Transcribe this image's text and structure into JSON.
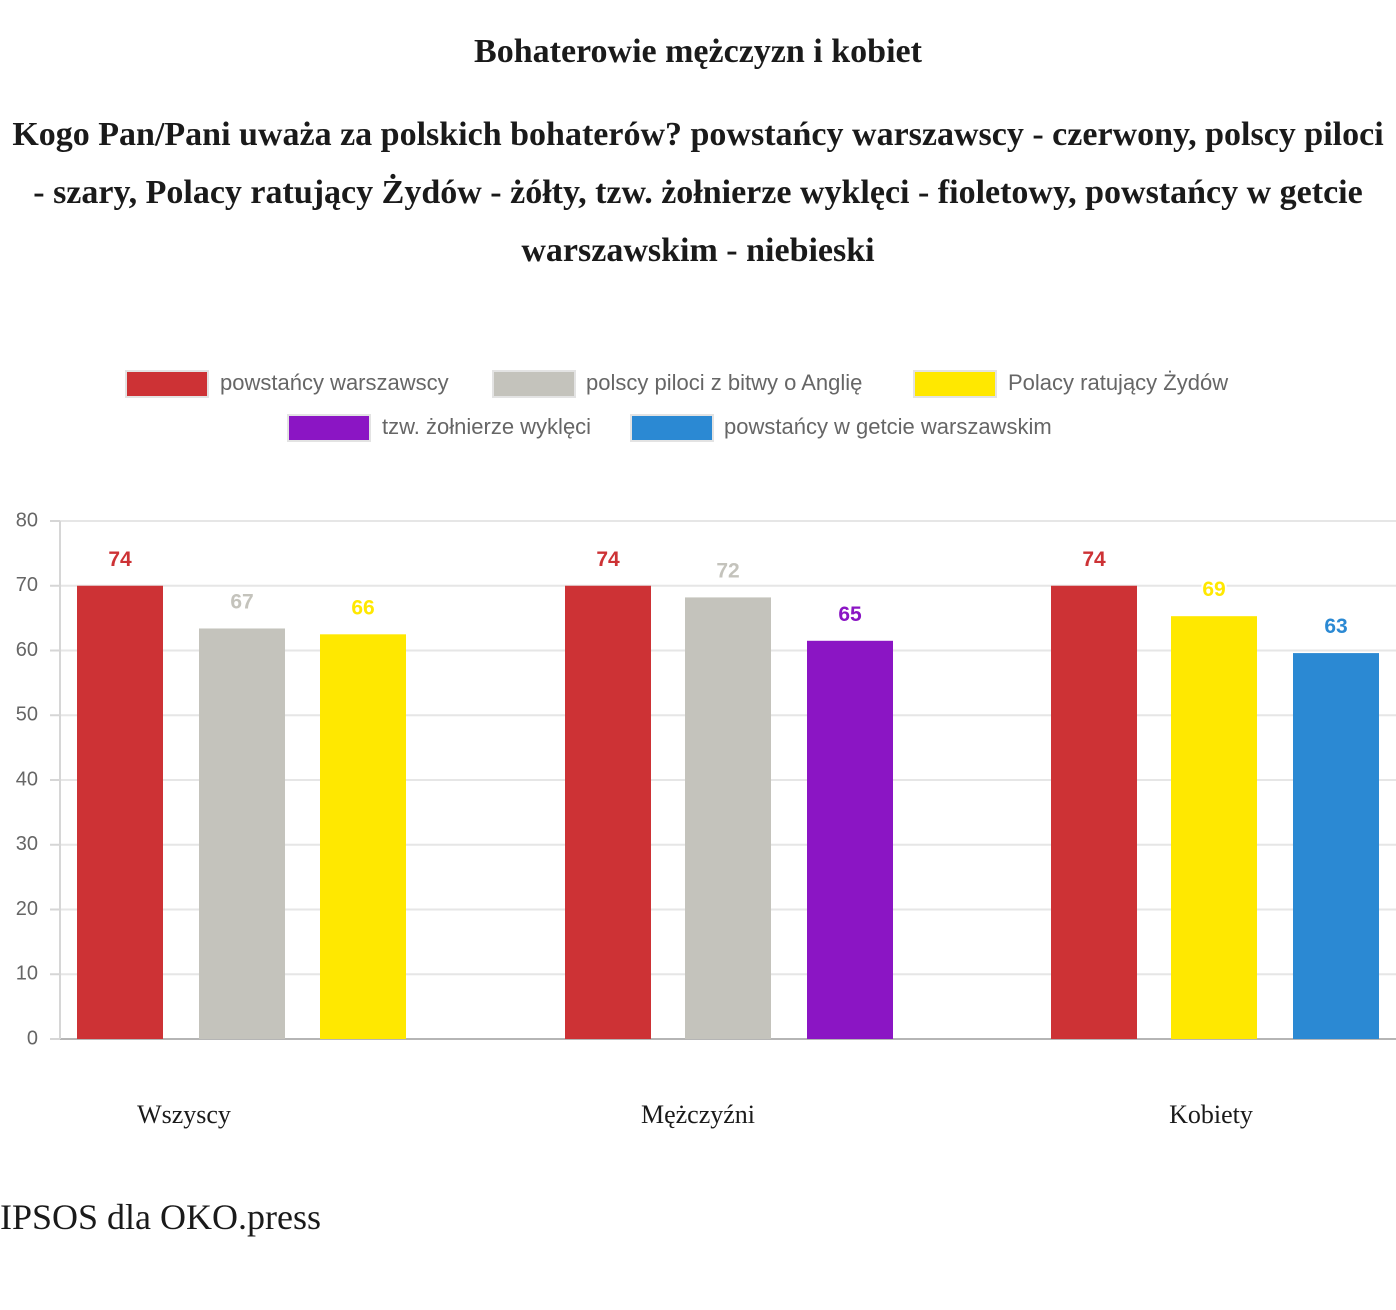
{
  "title": "Bohaterowie mężczyzn i kobiet",
  "subtitle": "Kogo Pan/Pani uważa za polskich bohaterów? powstańcy warszawscy - czerwony, polscy piloci - szary, Polacy ratujący Żydów - żółty, tzw. żołnierze wyklęci - fioletowy, powstańcy w getcie warszawskim - niebieski",
  "source": "IPSOS dla OKO.press",
  "chart_data": {
    "type": "bar",
    "categories": [
      "Wszyscy",
      "Mężczyźni",
      "Kobiety"
    ],
    "ylim": [
      0,
      80
    ],
    "yticks": [
      0,
      10,
      20,
      30,
      40,
      50,
      60,
      70,
      80
    ],
    "grid": true,
    "legend_position": "top",
    "series": [
      {
        "name": "powstańcy warszawscy",
        "color": "#cd3235",
        "values": [
          74,
          74,
          74
        ],
        "heights": [
          70,
          70,
          70
        ]
      },
      {
        "name": "polscy piloci z bitwy o Anglię",
        "color": "#c4c3bc",
        "values": [
          67,
          72,
          null
        ],
        "heights": [
          63.4,
          68.2,
          null
        ]
      },
      {
        "name": "Polacy ratujący Żydów",
        "color": "#ffe800",
        "values": [
          66,
          null,
          69
        ],
        "heights": [
          62.5,
          null,
          65.3
        ]
      },
      {
        "name": "tzw. żołnierze wyklęci",
        "color": "#8b15c4",
        "values": [
          null,
          65,
          null
        ],
        "heights": [
          null,
          61.5,
          null
        ]
      },
      {
        "name": "powstańcy w getcie warszawskim",
        "color": "#2b89d3",
        "values": [
          null,
          null,
          63
        ],
        "heights": [
          null,
          null,
          59.6
        ]
      }
    ]
  }
}
